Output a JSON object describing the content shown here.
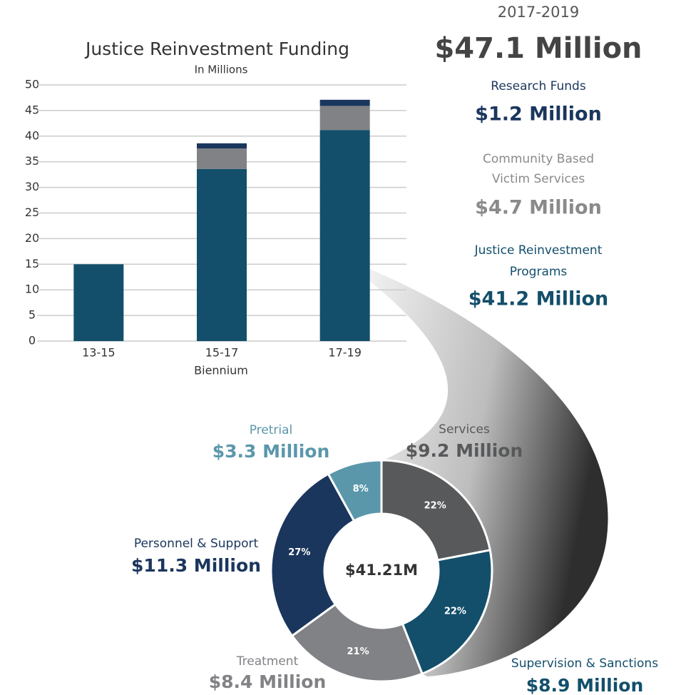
{
  "chart_data": [
    {
      "type": "bar",
      "stacked": true,
      "title": "Justice Reinvestment Funding",
      "subtitle": "In Millions",
      "x_label": "Biennium",
      "categories": [
        "13-15",
        "15-17",
        "17-19"
      ],
      "series": [
        {
          "color": "#134f6b",
          "values": [
            15,
            33.6,
            41.2
          ]
        },
        {
          "color": "#818286",
          "values": [
            0,
            4.0,
            4.7
          ]
        },
        {
          "color": "#1b365d",
          "values": [
            0,
            1.0,
            1.2
          ]
        }
      ],
      "ylim": [
        0,
        50
      ],
      "yticks": [
        0,
        5,
        10,
        15,
        20,
        25,
        30,
        35,
        40,
        45,
        50
      ],
      "grid": true
    },
    {
      "type": "donut",
      "center_label": "$41.21M",
      "categories": [
        "Services",
        "Supervision & Sanctions",
        "Treatment",
        "Personnel & Support",
        "Pretrial"
      ],
      "values": [
        22,
        22,
        21,
        27,
        8
      ],
      "value_labels": [
        "22%",
        "22%",
        "21%",
        "27%",
        "8%"
      ],
      "amount_labels": [
        "$9.2 Million",
        "$8.9 Million",
        "$8.4 Million",
        "$11.3 Million",
        "$3.3 Million"
      ],
      "colors": [
        "#58595b",
        "#134f6b",
        "#818286",
        "#1b365d",
        "#5b97ab"
      ]
    }
  ],
  "summary": {
    "period": "2017-2019",
    "total": "$47.1 Million",
    "items": [
      {
        "label": [
          "Research Funds"
        ],
        "amount": "$1.2 Million",
        "color": "#1b365d"
      },
      {
        "label": [
          "Community Based",
          "Victim Services"
        ],
        "amount": "$4.7 Million",
        "color": "#8a8a8a"
      },
      {
        "label": [
          "Justice Reinvestment",
          "Programs"
        ],
        "amount": "$41.2 Million",
        "color": "#134f6b"
      }
    ]
  }
}
